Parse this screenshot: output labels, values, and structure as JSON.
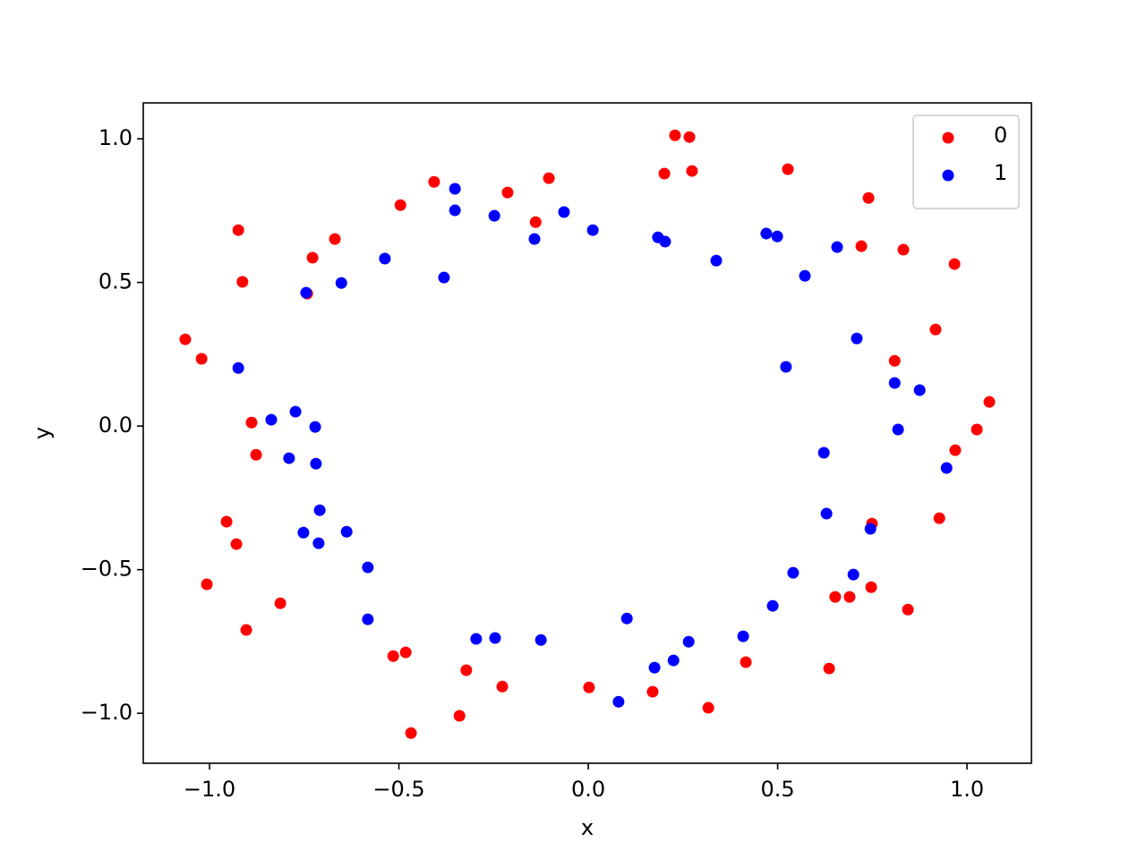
{
  "chart_data": {
    "type": "scatter",
    "x_label": "x",
    "y_label": "y",
    "xlim": [
      -1.175,
      1.17
    ],
    "ylim": [
      -1.174,
      1.125
    ],
    "xticks": [
      {
        "value": -1,
        "label": "−1.0"
      },
      {
        "value": -0.5,
        "label": "−0.5"
      },
      {
        "value": 0,
        "label": "0.0"
      },
      {
        "value": 0.5,
        "label": "0.5"
      },
      {
        "value": 1,
        "label": "1.0"
      }
    ],
    "yticks": [
      {
        "value": -1,
        "label": "−1.0"
      },
      {
        "value": -0.5,
        "label": "−0.5"
      },
      {
        "value": 0,
        "label": "0.0"
      },
      {
        "value": 0.5,
        "label": "0.5"
      },
      {
        "value": 1,
        "label": "1.0"
      }
    ],
    "legend": "upper right",
    "series": [
      {
        "name": "0",
        "color": "#ff0000",
        "x": [
          0.229,
          0.267,
          0.201,
          0.274,
          0.527,
          0.74,
          -0.407,
          -0.213,
          -0.104,
          -0.139,
          -0.496,
          -0.924,
          -0.669,
          -0.728,
          -0.913,
          -0.742,
          0.721,
          0.832,
          0.967,
          0.917,
          0.809,
          -1.064,
          -1.021,
          -0.889,
          -0.877,
          1.059,
          1.026,
          0.969,
          -0.955,
          -0.929,
          0.927,
          0.749,
          -1.007,
          -0.813,
          -0.903,
          0.652,
          0.69,
          0.747,
          0.844,
          -0.515,
          -0.482,
          -0.322,
          -0.227,
          -0.34,
          -0.468,
          0.002,
          0.17,
          0.317,
          0.416,
          0.636
        ],
        "y": [
          1.012,
          1.006,
          0.879,
          0.888,
          0.894,
          0.794,
          0.85,
          0.813,
          0.863,
          0.71,
          0.769,
          0.682,
          0.651,
          0.586,
          0.502,
          0.461,
          0.626,
          0.614,
          0.564,
          0.336,
          0.227,
          0.302,
          0.234,
          0.012,
          -0.1,
          0.084,
          -0.012,
          -0.084,
          -0.333,
          -0.411,
          -0.321,
          -0.34,
          -0.551,
          -0.617,
          -0.71,
          -0.595,
          -0.595,
          -0.561,
          -0.639,
          -0.801,
          -0.788,
          -0.85,
          -0.907,
          -1.009,
          -1.069,
          -0.91,
          -0.925,
          -0.981,
          -0.822,
          -0.844
        ]
      },
      {
        "name": "1",
        "color": "#0000ff",
        "x": [
          -0.352,
          -0.352,
          -0.248,
          -0.064,
          -0.142,
          0.012,
          0.184,
          0.203,
          -0.537,
          -0.381,
          -0.652,
          -0.745,
          0.338,
          0.47,
          0.499,
          0.572,
          0.657,
          0.709,
          -0.924,
          0.522,
          0.809,
          0.875,
          -0.837,
          -0.773,
          -0.721,
          0.818,
          -0.79,
          -0.719,
          0.622,
          0.946,
          -0.709,
          0.629,
          -0.752,
          -0.712,
          -0.638,
          0.745,
          -0.582,
          0.541,
          0.7,
          -0.582,
          0.102,
          0.487,
          -0.296,
          -0.246,
          -0.125,
          0.265,
          0.225,
          0.175,
          0.409,
          0.08
        ],
        "y": [
          0.826,
          0.751,
          0.732,
          0.745,
          0.651,
          0.682,
          0.657,
          0.642,
          0.583,
          0.517,
          0.498,
          0.464,
          0.576,
          0.67,
          0.66,
          0.523,
          0.623,
          0.305,
          0.202,
          0.206,
          0.15,
          0.125,
          0.022,
          0.05,
          -0.003,
          -0.012,
          -0.112,
          -0.131,
          -0.093,
          -0.146,
          -0.293,
          -0.305,
          -0.371,
          -0.408,
          -0.368,
          -0.358,
          -0.492,
          -0.511,
          -0.517,
          -0.673,
          -0.67,
          -0.626,
          -0.741,
          -0.738,
          -0.745,
          -0.751,
          -0.816,
          -0.841,
          -0.732,
          -0.96
        ]
      }
    ]
  }
}
